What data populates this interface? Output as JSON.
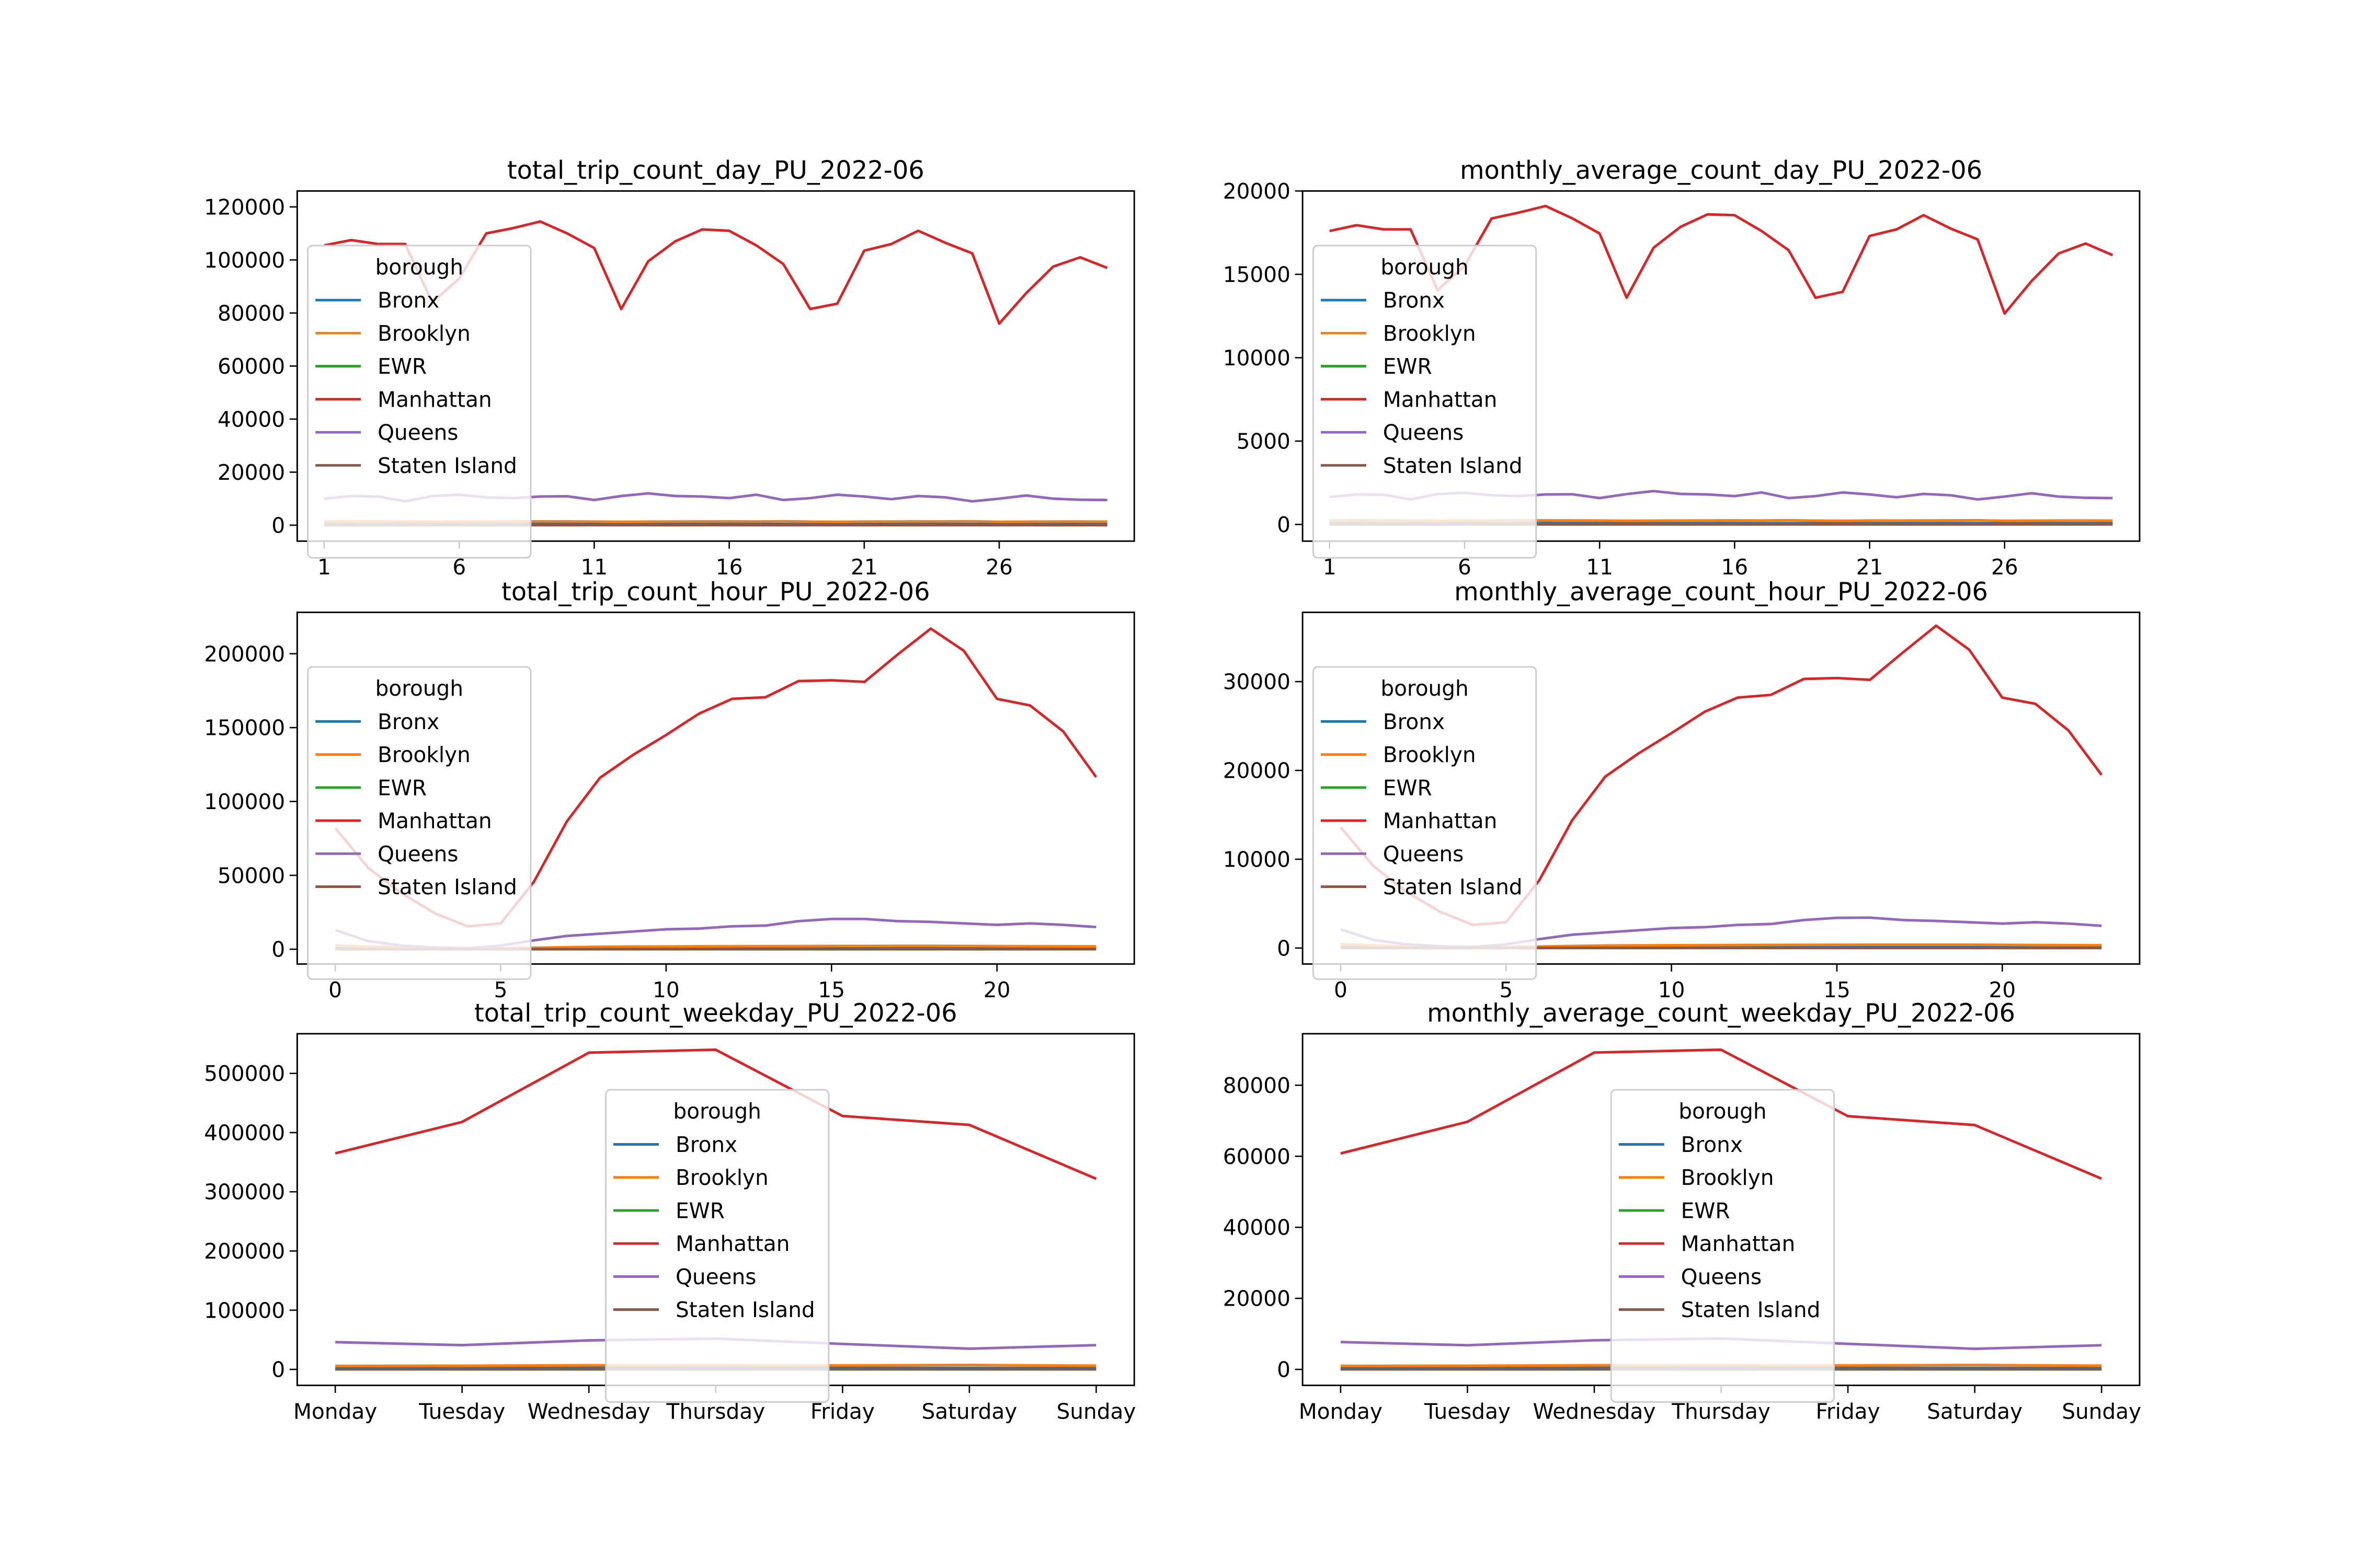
{
  "legend_title": "borough",
  "colors": {
    "Bronx": "#1f77b4",
    "Brooklyn": "#ff7f0e",
    "EWR": "#2ca02c",
    "Manhattan": "#d62728",
    "Queens": "#9467bd",
    "Staten Island": "#8c564b"
  },
  "chart_data": [
    {
      "type": "line",
      "title": "total_trip_count_day_PU_2022-06",
      "xlim": [
        0,
        31
      ],
      "ylim": [
        -6000,
        126000
      ],
      "yticks": [
        0,
        20000,
        40000,
        60000,
        80000,
        100000,
        120000
      ],
      "xticks": [
        1,
        6,
        11,
        16,
        21,
        26
      ],
      "legend": "upper-left",
      "x": [
        1,
        2,
        3,
        4,
        5,
        6,
        7,
        8,
        9,
        10,
        11,
        12,
        13,
        14,
        15,
        16,
        17,
        18,
        19,
        20,
        21,
        22,
        23,
        24,
        25,
        26,
        27,
        28,
        29,
        30
      ],
      "series": [
        {
          "name": "Bronx",
          "values": [
            500,
            520,
            510,
            480,
            450,
            470,
            490,
            510,
            520,
            500,
            480,
            460,
            470,
            490,
            500,
            510,
            490,
            470,
            450,
            460,
            480,
            490,
            500,
            510,
            490,
            460,
            470,
            480,
            490,
            470
          ]
        },
        {
          "name": "Brooklyn",
          "values": [
            1400,
            1450,
            1420,
            1380,
            1300,
            1350,
            1400,
            1430,
            1450,
            1420,
            1380,
            1300,
            1350,
            1400,
            1420,
            1440,
            1400,
            1500,
            1350,
            1300,
            1380,
            1400,
            1420,
            1450,
            1500,
            1300,
            1350,
            1380,
            1400,
            1350
          ]
        },
        {
          "name": "EWR",
          "values": [
            20,
            18,
            22,
            19,
            17,
            21,
            20,
            18,
            22,
            19,
            20,
            18,
            21,
            19,
            20,
            22,
            18,
            19,
            21,
            20,
            19,
            22,
            18,
            20,
            21,
            19,
            20,
            18,
            22,
            19
          ]
        },
        {
          "name": "Manhattan",
          "values": [
            105500,
            107500,
            106000,
            106000,
            84000,
            93000,
            110000,
            112000,
            114500,
            110000,
            104500,
            81500,
            99500,
            107000,
            111500,
            111000,
            105500,
            98500,
            81500,
            83500,
            103500,
            106000,
            111000,
            106500,
            102500,
            76000,
            87500,
            97500,
            101000,
            97000
          ]
        },
        {
          "name": "Queens",
          "values": [
            10000,
            11000,
            10800,
            9000,
            11000,
            11500,
            10500,
            10200,
            10800,
            10900,
            9500,
            11000,
            12000,
            11000,
            10800,
            10200,
            11500,
            9500,
            10200,
            11500,
            10800,
            9800,
            11000,
            10500,
            9000,
            10000,
            11200,
            10000,
            9600,
            9500
          ]
        },
        {
          "name": "Staten Island",
          "values": [
            50,
            55,
            52,
            48,
            45,
            50,
            53,
            55,
            54,
            51,
            49,
            46,
            50,
            52,
            54,
            55,
            51,
            48,
            45,
            47,
            50,
            52,
            54,
            55,
            51,
            45,
            48,
            50,
            52,
            49
          ]
        }
      ]
    },
    {
      "type": "line",
      "title": "monthly_average_count_day_PU_2022-06",
      "xlim": [
        0,
        31
      ],
      "ylim": [
        -1000,
        20000
      ],
      "yticks": [
        0,
        5000,
        10000,
        15000,
        20000
      ],
      "xticks": [
        1,
        6,
        11,
        16,
        21,
        26
      ],
      "legend": "upper-left",
      "x": [
        1,
        2,
        3,
        4,
        5,
        6,
        7,
        8,
        9,
        10,
        11,
        12,
        13,
        14,
        15,
        16,
        17,
        18,
        19,
        20,
        21,
        22,
        23,
        24,
        25,
        26,
        27,
        28,
        29,
        30
      ],
      "series": [
        {
          "name": "Bronx",
          "values": [
            85,
            87,
            86,
            82,
            78,
            80,
            83,
            86,
            88,
            85,
            82,
            78,
            80,
            83,
            85,
            86,
            83,
            80,
            77,
            78,
            82,
            83,
            85,
            86,
            83,
            78,
            80,
            82,
            83,
            80
          ]
        },
        {
          "name": "Brooklyn",
          "values": [
            240,
            245,
            242,
            235,
            220,
            230,
            238,
            243,
            246,
            242,
            235,
            220,
            230,
            238,
            242,
            245,
            238,
            255,
            230,
            220,
            235,
            238,
            242,
            246,
            255,
            220,
            230,
            235,
            238,
            230
          ]
        },
        {
          "name": "EWR",
          "values": [
            4,
            3,
            4,
            3,
            3,
            4,
            4,
            3,
            4,
            3,
            4,
            3,
            4,
            3,
            4,
            4,
            3,
            3,
            4,
            4,
            3,
            4,
            3,
            4,
            4,
            3,
            4,
            3,
            4,
            3
          ]
        },
        {
          "name": "Manhattan",
          "values": [
            17600,
            17950,
            17700,
            17700,
            14050,
            15500,
            18350,
            18700,
            19100,
            18350,
            17450,
            13600,
            16600,
            17850,
            18600,
            18550,
            17600,
            16450,
            13600,
            13950,
            17300,
            17700,
            18550,
            17750,
            17100,
            12650,
            14600,
            16250,
            16850,
            16150
          ]
        },
        {
          "name": "Queens",
          "values": [
            1650,
            1800,
            1780,
            1500,
            1820,
            1900,
            1750,
            1700,
            1800,
            1810,
            1580,
            1820,
            2000,
            1830,
            1800,
            1700,
            1920,
            1580,
            1700,
            1920,
            1800,
            1630,
            1830,
            1750,
            1500,
            1670,
            1870,
            1670,
            1600,
            1580
          ]
        },
        {
          "name": "Staten Island",
          "values": [
            8,
            9,
            9,
            8,
            8,
            8,
            9,
            9,
            9,
            9,
            8,
            8,
            8,
            9,
            9,
            9,
            9,
            8,
            8,
            8,
            8,
            9,
            9,
            9,
            9,
            8,
            8,
            8,
            9,
            8
          ]
        }
      ]
    },
    {
      "type": "line",
      "title": "total_trip_count_hour_PU_2022-06",
      "xlim": [
        -1.15,
        24.15
      ],
      "ylim": [
        -10000,
        228000
      ],
      "yticks": [
        0,
        50000,
        100000,
        150000,
        200000
      ],
      "xticks": [
        0,
        5,
        10,
        15,
        20
      ],
      "legend": "upper-left",
      "x": [
        0,
        1,
        2,
        3,
        4,
        5,
        6,
        7,
        8,
        9,
        10,
        11,
        12,
        13,
        14,
        15,
        16,
        17,
        18,
        19,
        20,
        21,
        22,
        23
      ],
      "series": [
        {
          "name": "Bronx",
          "values": [
            700,
            500,
            350,
            250,
            200,
            250,
            400,
            600,
            750,
            800,
            850,
            900,
            950,
            1000,
            1050,
            1100,
            1100,
            1050,
            1000,
            950,
            900,
            850,
            800,
            750
          ]
        },
        {
          "name": "Brooklyn",
          "values": [
            2600,
            1800,
            1200,
            800,
            600,
            700,
            1000,
            1400,
            1700,
            1800,
            1900,
            2000,
            2050,
            2100,
            2150,
            2200,
            2250,
            2300,
            2300,
            2250,
            2150,
            2050,
            2000,
            1950
          ]
        },
        {
          "name": "EWR",
          "values": [
            15,
            10,
            8,
            6,
            5,
            6,
            8,
            10,
            12,
            12,
            13,
            14,
            14,
            15,
            15,
            15,
            15,
            14,
            14,
            13,
            13,
            12,
            12,
            11
          ]
        },
        {
          "name": "Manhattan",
          "values": [
            82000,
            55000,
            38000,
            24500,
            15500,
            17500,
            45500,
            86500,
            116000,
            131500,
            145000,
            159500,
            169500,
            170500,
            181500,
            182000,
            181000,
            199500,
            217000,
            202000,
            169500,
            165000,
            147500,
            116500
          ]
        },
        {
          "name": "Queens",
          "values": [
            13000,
            5500,
            2500,
            1200,
            700,
            2500,
            6000,
            9000,
            10500,
            12000,
            13500,
            14000,
            15500,
            16000,
            19000,
            20500,
            20500,
            19000,
            18500,
            17500,
            16500,
            17500,
            16500,
            15000
          ]
        },
        {
          "name": "Staten Island",
          "values": [
            80,
            50,
            30,
            20,
            15,
            20,
            40,
            60,
            80,
            90,
            90,
            95,
            95,
            100,
            100,
            105,
            105,
            100,
            100,
            95,
            90,
            90,
            85,
            80
          ]
        }
      ]
    },
    {
      "type": "line",
      "title": "monthly_average_count_hour_PU_2022-06",
      "xlim": [
        -1.15,
        24.15
      ],
      "ylim": [
        -1800,
        37800
      ],
      "yticks": [
        0,
        10000,
        20000,
        30000
      ],
      "xticks": [
        0,
        5,
        10,
        15,
        20
      ],
      "legend": "upper-left",
      "x": [
        0,
        1,
        2,
        3,
        4,
        5,
        6,
        7,
        8,
        9,
        10,
        11,
        12,
        13,
        14,
        15,
        16,
        17,
        18,
        19,
        20,
        21,
        22,
        23
      ],
      "series": [
        {
          "name": "Bronx",
          "values": [
            115,
            85,
            60,
            42,
            33,
            42,
            66,
            100,
            125,
            133,
            142,
            150,
            158,
            166,
            175,
            183,
            183,
            175,
            166,
            158,
            150,
            142,
            133,
            125
          ]
        },
        {
          "name": "Brooklyn",
          "values": [
            430,
            300,
            200,
            135,
            100,
            115,
            165,
            230,
            285,
            300,
            315,
            330,
            340,
            350,
            360,
            365,
            375,
            380,
            380,
            375,
            360,
            340,
            330,
            325
          ]
        },
        {
          "name": "EWR",
          "values": [
            3,
            2,
            2,
            1,
            1,
            1,
            2,
            2,
            2,
            2,
            2,
            2,
            2,
            3,
            3,
            3,
            3,
            2,
            2,
            2,
            2,
            2,
            2,
            2
          ]
        },
        {
          "name": "Manhattan",
          "values": [
            13600,
            9200,
            6300,
            4100,
            2600,
            2900,
            7600,
            14400,
            19300,
            21900,
            24200,
            26600,
            28200,
            28500,
            30300,
            30400,
            30200,
            33300,
            36300,
            33600,
            28200,
            27500,
            24500,
            19500
          ]
        },
        {
          "name": "Queens",
          "values": [
            2100,
            900,
            420,
            200,
            120,
            420,
            1000,
            1500,
            1750,
            2000,
            2250,
            2350,
            2600,
            2700,
            3150,
            3400,
            3420,
            3150,
            3050,
            2900,
            2750,
            2900,
            2750,
            2500
          ]
        },
        {
          "name": "Staten Island",
          "values": [
            13,
            8,
            5,
            3,
            3,
            3,
            7,
            10,
            13,
            15,
            15,
            16,
            16,
            17,
            17,
            18,
            18,
            17,
            17,
            16,
            15,
            15,
            14,
            13
          ]
        }
      ]
    },
    {
      "type": "line",
      "title": "total_trip_count_weekday_PU_2022-06",
      "xlim": [
        -0.3,
        6.3
      ],
      "ylim": [
        -27000,
        567000
      ],
      "yticks": [
        0,
        100000,
        200000,
        300000,
        400000,
        500000
      ],
      "categories": [
        "Monday",
        "Tuesday",
        "Wednesday",
        "Thursday",
        "Friday",
        "Saturday",
        "Sunday"
      ],
      "legend": "center",
      "series": [
        {
          "name": "Bronx",
          "values": [
            2500,
            2400,
            2700,
            2800,
            2700,
            2600,
            2300
          ]
        },
        {
          "name": "Brooklyn",
          "values": [
            6000,
            6200,
            7000,
            7200,
            6800,
            7500,
            6300
          ]
        },
        {
          "name": "EWR",
          "values": [
            100,
            90,
            110,
            115,
            100,
            80,
            85
          ]
        },
        {
          "name": "Manhattan",
          "values": [
            365000,
            418000,
            535000,
            540000,
            428000,
            413000,
            322000
          ]
        },
        {
          "name": "Queens",
          "values": [
            46000,
            41000,
            49000,
            52000,
            43000,
            35000,
            41000
          ]
        },
        {
          "name": "Staten Island",
          "values": [
            300,
            280,
            320,
            330,
            310,
            290,
            270
          ]
        }
      ]
    },
    {
      "type": "line",
      "title": "monthly_average_count_weekday_PU_2022-06",
      "xlim": [
        -0.3,
        6.3
      ],
      "ylim": [
        -4500,
        94500
      ],
      "yticks": [
        0,
        20000,
        40000,
        60000,
        80000
      ],
      "categories": [
        "Monday",
        "Tuesday",
        "Wednesday",
        "Thursday",
        "Friday",
        "Saturday",
        "Sunday"
      ],
      "legend": "center",
      "series": [
        {
          "name": "Bronx",
          "values": [
            420,
            400,
            450,
            470,
            450,
            430,
            380
          ]
        },
        {
          "name": "Brooklyn",
          "values": [
            1000,
            1030,
            1170,
            1200,
            1130,
            1250,
            1050
          ]
        },
        {
          "name": "EWR",
          "values": [
            17,
            15,
            18,
            19,
            17,
            13,
            14
          ]
        },
        {
          "name": "Manhattan",
          "values": [
            60800,
            69700,
            89200,
            90000,
            71300,
            68800,
            53700
          ]
        },
        {
          "name": "Queens",
          "values": [
            7700,
            6800,
            8200,
            8700,
            7200,
            5800,
            6800
          ]
        },
        {
          "name": "Staten Island",
          "values": [
            50,
            47,
            53,
            55,
            52,
            48,
            45
          ]
        }
      ]
    }
  ]
}
